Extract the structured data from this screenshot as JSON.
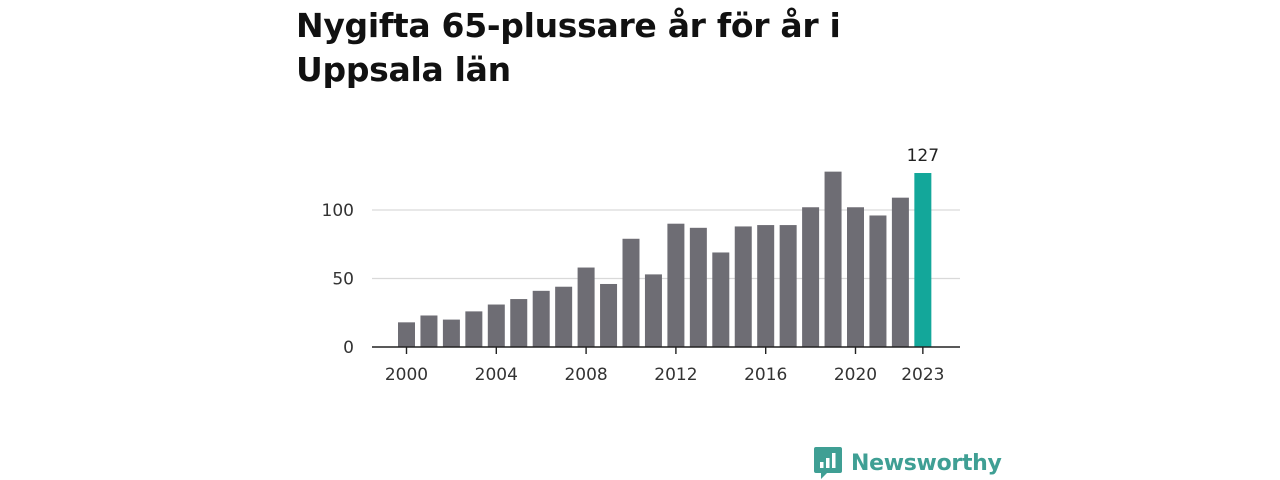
{
  "chart_data": {
    "type": "bar",
    "title": "Nygifta 65-plussare år för år i Uppsala län",
    "xlabel": "",
    "ylabel": "",
    "categories": [
      "2000",
      "2001",
      "2002",
      "2003",
      "2004",
      "2005",
      "2006",
      "2007",
      "2008",
      "2009",
      "2010",
      "2011",
      "2012",
      "2013",
      "2014",
      "2015",
      "2016",
      "2017",
      "2018",
      "2019",
      "2020",
      "2021",
      "2022",
      "2023"
    ],
    "values": [
      18,
      23,
      20,
      26,
      31,
      35,
      41,
      44,
      58,
      46,
      79,
      53,
      90,
      87,
      69,
      88,
      89,
      89,
      102,
      128,
      102,
      96,
      109,
      127
    ],
    "ylim": [
      0,
      140
    ],
    "yticks": [
      0,
      50,
      100
    ],
    "xtick_labels": [
      "2000",
      "2004",
      "2008",
      "2012",
      "2016",
      "2020",
      "2023"
    ],
    "highlight": {
      "category": "2023",
      "label": "127"
    },
    "grid": "horizontal",
    "colors": {
      "bar": "#6e6d74",
      "highlight": "#13a79a",
      "grid": "#d9d9d9",
      "axis": "#222222"
    }
  },
  "brand": {
    "name": "Newsworthy",
    "color": "#3f9f94",
    "icon": "bar-chart-speech-bubble-icon"
  }
}
